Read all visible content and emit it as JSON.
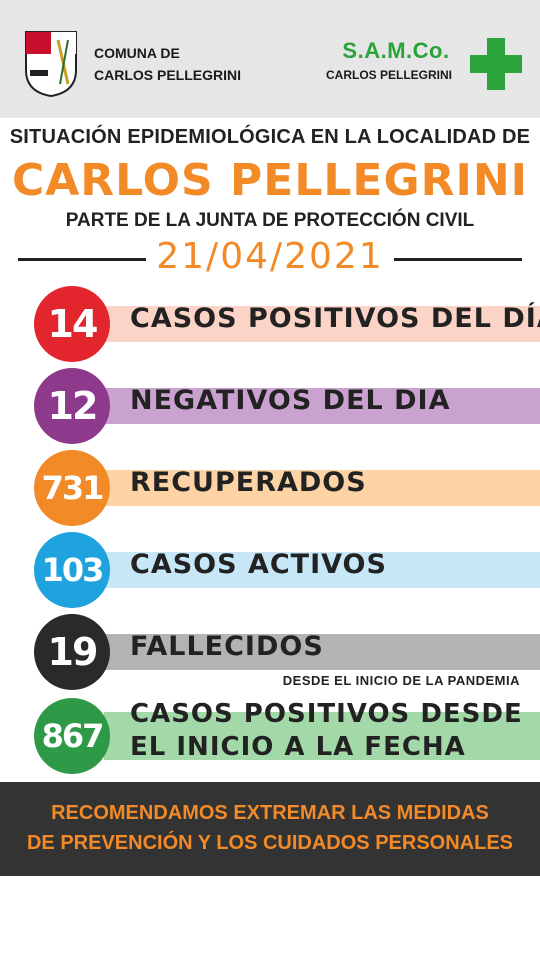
{
  "header": {
    "comuna_line1": "COMUNA DE",
    "comuna_line2": "CARLOS PELLEGRINI",
    "samco_title": "S.A.M.Co.",
    "samco_sub": "CARLOS PELLEGRINI",
    "cross_color": "#2aa43a"
  },
  "title": {
    "situacion": "SITUACIÓN EPIDEMIOLÓGICA EN LA LOCALIDAD DE",
    "city": "CARLOS PELLEGRINI",
    "parte": "PARTE DE LA JUNTA DE PROTECCIÓN CIVIL",
    "date": "21/04/2021"
  },
  "stats": [
    {
      "value": "14",
      "label": "CASOS POSITIVOS DEL DÍA",
      "circle_color": "#e3262d",
      "band_color": "#fbd3c7"
    },
    {
      "value": "12",
      "label": "NEGATIVOS DEL DIA",
      "circle_color": "#8e3a8c",
      "band_color": "#c9a2cf"
    },
    {
      "value": "731",
      "label": "RECUPERADOS",
      "circle_color": "#f28a28",
      "band_color": "#fdd3a6"
    },
    {
      "value": "103",
      "label": "CASOS ACTIVOS",
      "circle_color": "#1fa3df",
      "band_color": "#c7e6f6"
    },
    {
      "value": "19",
      "label": "FALLECIDOS",
      "circle_color": "#2a2a2a",
      "band_color": "#b3b3b3"
    },
    {
      "value": "867",
      "label": "CASOS POSITIVOS DESDE EL INICIO A LA FECHA",
      "circle_color": "#2e9a48",
      "band_color": "#a3d9a8"
    }
  ],
  "desde_note": "DESDE EL INICIO DE LA PANDEMIA",
  "footer": {
    "line1": "RECOMENDAMOS EXTREMAR LAS MEDIDAS",
    "line2": "DE PREVENCIÓN Y LOS CUIDADOS PERSONALES"
  }
}
